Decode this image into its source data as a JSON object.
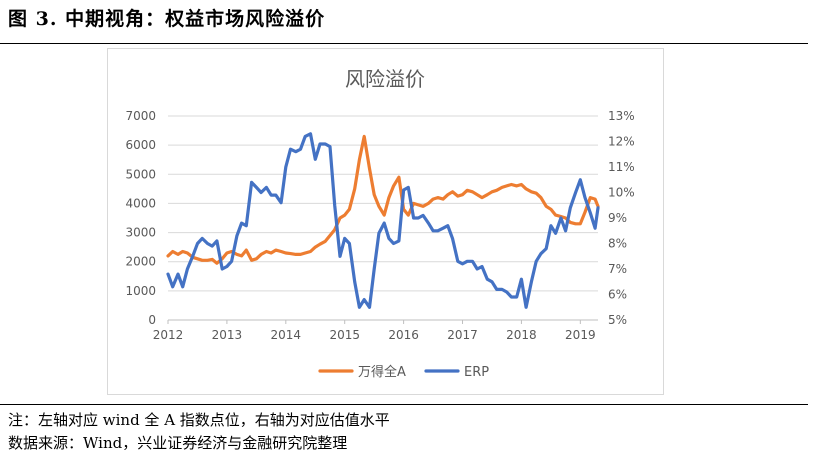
{
  "header": {
    "figure_title": "图 3. 中期视角：权益市场风险溢价"
  },
  "footer": {
    "note": "注：左轴对应 wind 全 A 指数点位，右轴为对应估值水平",
    "source": "数据来源：Wind，兴业证券经济与金融研究院整理"
  },
  "chart_data": {
    "type": "line",
    "title": "风险溢价",
    "xlabel": "",
    "ylabel": "",
    "x_ticks": [
      "2012",
      "2013",
      "2014",
      "2015",
      "2016",
      "2017",
      "2018",
      "2019"
    ],
    "x_range": [
      2012.0,
      2019.3
    ],
    "y_left": {
      "range": [
        0,
        7000
      ],
      "ticks": [
        "0",
        "1000",
        "2000",
        "3000",
        "4000",
        "5000",
        "6000",
        "7000"
      ]
    },
    "y_right": {
      "range": [
        5,
        13
      ],
      "ticks": [
        "5%",
        "6%",
        "7%",
        "8%",
        "9%",
        "10%",
        "11%",
        "12%",
        "13%"
      ]
    },
    "legend_position": "bottom",
    "grid": true,
    "series": [
      {
        "name": "万得全A",
        "axis": "left",
        "color": "#ED7D31",
        "points": [
          [
            2012.0,
            2200
          ],
          [
            2012.08,
            2350
          ],
          [
            2012.17,
            2250
          ],
          [
            2012.25,
            2350
          ],
          [
            2012.33,
            2300
          ],
          [
            2012.42,
            2150
          ],
          [
            2012.5,
            2100
          ],
          [
            2012.58,
            2050
          ],
          [
            2012.67,
            2050
          ],
          [
            2012.75,
            2080
          ],
          [
            2012.83,
            1950
          ],
          [
            2012.92,
            2100
          ],
          [
            2013.0,
            2300
          ],
          [
            2013.08,
            2350
          ],
          [
            2013.17,
            2250
          ],
          [
            2013.25,
            2200
          ],
          [
            2013.33,
            2400
          ],
          [
            2013.42,
            2050
          ],
          [
            2013.5,
            2100
          ],
          [
            2013.58,
            2250
          ],
          [
            2013.67,
            2350
          ],
          [
            2013.75,
            2300
          ],
          [
            2013.83,
            2400
          ],
          [
            2013.92,
            2350
          ],
          [
            2014.0,
            2300
          ],
          [
            2014.08,
            2280
          ],
          [
            2014.17,
            2250
          ],
          [
            2014.25,
            2250
          ],
          [
            2014.33,
            2300
          ],
          [
            2014.42,
            2350
          ],
          [
            2014.5,
            2500
          ],
          [
            2014.58,
            2600
          ],
          [
            2014.67,
            2700
          ],
          [
            2014.75,
            2900
          ],
          [
            2014.83,
            3100
          ],
          [
            2014.92,
            3500
          ],
          [
            2015.0,
            3600
          ],
          [
            2015.08,
            3800
          ],
          [
            2015.17,
            4500
          ],
          [
            2015.25,
            5500
          ],
          [
            2015.33,
            6300
          ],
          [
            2015.42,
            5200
          ],
          [
            2015.5,
            4300
          ],
          [
            2015.58,
            3900
          ],
          [
            2015.67,
            3600
          ],
          [
            2015.75,
            4200
          ],
          [
            2015.83,
            4600
          ],
          [
            2015.92,
            4900
          ],
          [
            2016.0,
            3800
          ],
          [
            2016.08,
            3600
          ],
          [
            2016.17,
            4000
          ],
          [
            2016.25,
            3950
          ],
          [
            2016.33,
            3900
          ],
          [
            2016.42,
            4000
          ],
          [
            2016.5,
            4150
          ],
          [
            2016.58,
            4200
          ],
          [
            2016.67,
            4150
          ],
          [
            2016.75,
            4300
          ],
          [
            2016.83,
            4400
          ],
          [
            2016.92,
            4250
          ],
          [
            2017.0,
            4300
          ],
          [
            2017.08,
            4450
          ],
          [
            2017.17,
            4400
          ],
          [
            2017.25,
            4300
          ],
          [
            2017.33,
            4200
          ],
          [
            2017.42,
            4300
          ],
          [
            2017.5,
            4400
          ],
          [
            2017.58,
            4450
          ],
          [
            2017.67,
            4550
          ],
          [
            2017.75,
            4600
          ],
          [
            2017.83,
            4650
          ],
          [
            2017.92,
            4600
          ],
          [
            2018.0,
            4650
          ],
          [
            2018.08,
            4500
          ],
          [
            2018.17,
            4400
          ],
          [
            2018.25,
            4350
          ],
          [
            2018.33,
            4200
          ],
          [
            2018.42,
            3900
          ],
          [
            2018.5,
            3800
          ],
          [
            2018.58,
            3600
          ],
          [
            2018.67,
            3550
          ],
          [
            2018.75,
            3500
          ],
          [
            2018.83,
            3350
          ],
          [
            2018.92,
            3300
          ],
          [
            2019.0,
            3300
          ],
          [
            2019.08,
            3700
          ],
          [
            2019.17,
            4200
          ],
          [
            2019.25,
            4150
          ],
          [
            2019.3,
            3900
          ]
        ]
      },
      {
        "name": "ERP",
        "axis": "right",
        "color": "#4472C4",
        "points": [
          [
            2012.0,
            6.8
          ],
          [
            2012.08,
            6.3
          ],
          [
            2012.17,
            6.8
          ],
          [
            2012.25,
            6.3
          ],
          [
            2012.33,
            7.0
          ],
          [
            2012.42,
            7.5
          ],
          [
            2012.5,
            8.0
          ],
          [
            2012.58,
            8.2
          ],
          [
            2012.67,
            8.0
          ],
          [
            2012.75,
            7.9
          ],
          [
            2012.83,
            8.1
          ],
          [
            2012.92,
            7.0
          ],
          [
            2013.0,
            7.1
          ],
          [
            2013.08,
            7.3
          ],
          [
            2013.17,
            8.3
          ],
          [
            2013.25,
            8.8
          ],
          [
            2013.33,
            8.7
          ],
          [
            2013.42,
            10.4
          ],
          [
            2013.5,
            10.2
          ],
          [
            2013.58,
            10.0
          ],
          [
            2013.67,
            10.2
          ],
          [
            2013.75,
            9.9
          ],
          [
            2013.83,
            9.9
          ],
          [
            2013.92,
            9.6
          ],
          [
            2014.0,
            11.0
          ],
          [
            2014.08,
            11.7
          ],
          [
            2014.17,
            11.6
          ],
          [
            2014.25,
            11.7
          ],
          [
            2014.33,
            12.2
          ],
          [
            2014.42,
            12.3
          ],
          [
            2014.5,
            11.3
          ],
          [
            2014.58,
            11.9
          ],
          [
            2014.67,
            11.9
          ],
          [
            2014.75,
            11.8
          ],
          [
            2014.83,
            9.5
          ],
          [
            2014.92,
            7.5
          ],
          [
            2015.0,
            8.2
          ],
          [
            2015.08,
            8.0
          ],
          [
            2015.17,
            6.5
          ],
          [
            2015.25,
            5.5
          ],
          [
            2015.33,
            5.8
          ],
          [
            2015.42,
            5.5
          ],
          [
            2015.5,
            7.0
          ],
          [
            2015.58,
            8.4
          ],
          [
            2015.67,
            8.8
          ],
          [
            2015.75,
            8.2
          ],
          [
            2015.83,
            8.0
          ],
          [
            2015.92,
            8.1
          ],
          [
            2016.0,
            10.1
          ],
          [
            2016.08,
            10.2
          ],
          [
            2016.17,
            9.0
          ],
          [
            2016.25,
            9.0
          ],
          [
            2016.33,
            9.1
          ],
          [
            2016.42,
            8.8
          ],
          [
            2016.5,
            8.5
          ],
          [
            2016.58,
            8.5
          ],
          [
            2016.67,
            8.6
          ],
          [
            2016.75,
            8.7
          ],
          [
            2016.83,
            8.2
          ],
          [
            2016.92,
            7.3
          ],
          [
            2017.0,
            7.2
          ],
          [
            2017.08,
            7.3
          ],
          [
            2017.17,
            7.3
          ],
          [
            2017.25,
            7.0
          ],
          [
            2017.33,
            7.1
          ],
          [
            2017.42,
            6.6
          ],
          [
            2017.5,
            6.5
          ],
          [
            2017.58,
            6.2
          ],
          [
            2017.67,
            6.2
          ],
          [
            2017.75,
            6.1
          ],
          [
            2017.83,
            5.9
          ],
          [
            2017.92,
            5.9
          ],
          [
            2018.0,
            6.6
          ],
          [
            2018.08,
            5.5
          ],
          [
            2018.17,
            6.5
          ],
          [
            2018.25,
            7.3
          ],
          [
            2018.33,
            7.6
          ],
          [
            2018.42,
            7.8
          ],
          [
            2018.5,
            8.7
          ],
          [
            2018.58,
            8.4
          ],
          [
            2018.67,
            9.0
          ],
          [
            2018.75,
            8.5
          ],
          [
            2018.83,
            9.4
          ],
          [
            2018.92,
            10.0
          ],
          [
            2019.0,
            10.5
          ],
          [
            2019.08,
            9.8
          ],
          [
            2019.17,
            9.2
          ],
          [
            2019.25,
            8.6
          ],
          [
            2019.3,
            9.4
          ]
        ]
      }
    ]
  }
}
